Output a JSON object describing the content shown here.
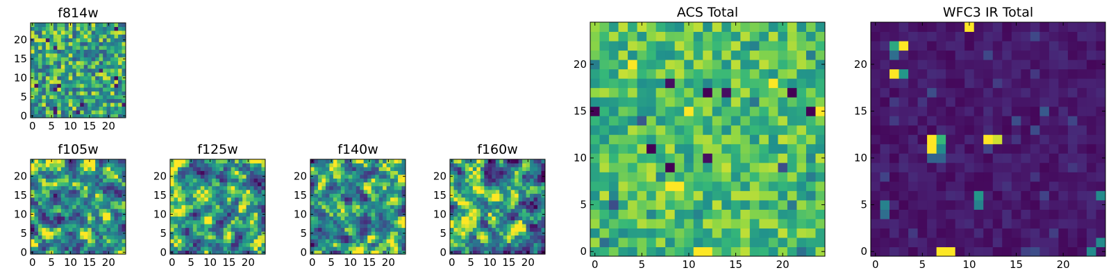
{
  "figure_title": "",
  "chart_data": [
    {
      "type": "heatmap",
      "title": "f814w",
      "grid": 25,
      "colormap": "viridis",
      "pattern": "uniform",
      "seed": 11,
      "xticks": [
        0,
        5,
        10,
        15,
        20
      ],
      "yticks": [
        0,
        5,
        10,
        15,
        20
      ],
      "xlim": [
        -0.5,
        24.5
      ],
      "ylim": [
        -0.5,
        24.5
      ]
    },
    {
      "type": "heatmap",
      "title": "f105w",
      "grid": 25,
      "colormap": "viridis",
      "pattern": "smooth",
      "seed": 23,
      "xticks": [
        0,
        5,
        10,
        15,
        20
      ],
      "yticks": [
        0,
        5,
        10,
        15,
        20
      ],
      "xlim": [
        -0.5,
        24.5
      ],
      "ylim": [
        -0.5,
        24.5
      ]
    },
    {
      "type": "heatmap",
      "title": "f125w",
      "grid": 25,
      "colormap": "viridis",
      "pattern": "smooth",
      "seed": 37,
      "xticks": [
        0,
        5,
        10,
        15,
        20
      ],
      "yticks": [
        0,
        5,
        10,
        15,
        20
      ],
      "xlim": [
        -0.5,
        24.5
      ],
      "ylim": [
        -0.5,
        24.5
      ]
    },
    {
      "type": "heatmap",
      "title": "f140w",
      "grid": 25,
      "colormap": "viridis",
      "pattern": "smooth",
      "seed": 41,
      "xticks": [
        0,
        5,
        10,
        15,
        20
      ],
      "yticks": [
        0,
        5,
        10,
        15,
        20
      ],
      "xlim": [
        -0.5,
        24.5
      ],
      "ylim": [
        -0.5,
        24.5
      ]
    },
    {
      "type": "heatmap",
      "title": "f160w",
      "grid": 25,
      "colormap": "viridis",
      "pattern": "smooth",
      "seed": 53,
      "xticks": [
        0,
        5,
        10,
        15,
        20
      ],
      "yticks": [
        0,
        5,
        10,
        15,
        20
      ],
      "xlim": [
        -0.5,
        24.5
      ],
      "ylim": [
        -0.5,
        24.5
      ]
    },
    {
      "type": "heatmap",
      "title": "ACS Total",
      "grid": 25,
      "colormap": "viridis",
      "pattern": "bright",
      "seed": 67,
      "xticks": [
        0,
        5,
        10,
        15,
        20
      ],
      "yticks": [
        0,
        5,
        10,
        15,
        20
      ],
      "xlim": [
        -0.5,
        24.5
      ],
      "ylim": [
        -0.5,
        24.5
      ],
      "highlights": [
        {
          "x": 0,
          "y": 15,
          "v": 0.0
        },
        {
          "x": 8,
          "y": 18,
          "v": 0.05
        },
        {
          "x": 12,
          "y": 17,
          "v": 0.0
        },
        {
          "x": 14,
          "y": 17,
          "v": 0.05
        },
        {
          "x": 21,
          "y": 17,
          "v": 0.0
        },
        {
          "x": 23,
          "y": 15,
          "v": 0.0
        },
        {
          "x": 6,
          "y": 11,
          "v": 0.0
        },
        {
          "x": 12,
          "y": 10,
          "v": 0.05
        },
        {
          "x": 8,
          "y": 9,
          "v": 0.0
        },
        {
          "x": 4,
          "y": 20,
          "v": 1.0
        },
        {
          "x": 10,
          "y": 15,
          "v": 1.0
        },
        {
          "x": 19,
          "y": 18,
          "v": 1.0
        },
        {
          "x": 24,
          "y": 15,
          "v": 1.0
        },
        {
          "x": 8,
          "y": 7,
          "v": 1.0
        },
        {
          "x": 9,
          "y": 7,
          "v": 1.0
        },
        {
          "x": 11,
          "y": 0,
          "v": 1.0
        },
        {
          "x": 12,
          "y": 0,
          "v": 1.0
        },
        {
          "x": 5,
          "y": 14,
          "v": 0.35
        },
        {
          "x": 20,
          "y": 9,
          "v": 0.3
        },
        {
          "x": 2,
          "y": 5,
          "v": 0.3
        }
      ]
    },
    {
      "type": "heatmap",
      "title": "WFC3 IR Total",
      "grid": 25,
      "colormap": "viridis",
      "pattern": "dark",
      "seed": 79,
      "xticks": [
        0,
        5,
        10,
        15,
        20
      ],
      "yticks": [
        0,
        5,
        10,
        15,
        20
      ],
      "xlim": [
        -0.5,
        24.5
      ],
      "ylim": [
        -0.5,
        24.5
      ],
      "highlights": [
        {
          "x": 10,
          "y": 24,
          "v": 1.0
        },
        {
          "x": 2,
          "y": 22,
          "v": 0.7
        },
        {
          "x": 3,
          "y": 22,
          "v": 1.0
        },
        {
          "x": 2,
          "y": 21,
          "v": 0.45
        },
        {
          "x": 2,
          "y": 19,
          "v": 1.0
        },
        {
          "x": 3,
          "y": 19,
          "v": 0.65
        },
        {
          "x": 6,
          "y": 12,
          "v": 1.0
        },
        {
          "x": 7,
          "y": 12,
          "v": 0.75
        },
        {
          "x": 6,
          "y": 11,
          "v": 1.0
        },
        {
          "x": 7,
          "y": 11,
          "v": 0.6
        },
        {
          "x": 6,
          "y": 10,
          "v": 0.4
        },
        {
          "x": 7,
          "y": 10,
          "v": 0.4
        },
        {
          "x": 12,
          "y": 12,
          "v": 1.0
        },
        {
          "x": 13,
          "y": 12,
          "v": 0.95
        },
        {
          "x": 11,
          "y": 6,
          "v": 0.65
        },
        {
          "x": 11,
          "y": 5,
          "v": 0.55
        },
        {
          "x": 1,
          "y": 5,
          "v": 0.55
        },
        {
          "x": 1,
          "y": 4,
          "v": 0.45
        },
        {
          "x": 7,
          "y": 0,
          "v": 1.0
        },
        {
          "x": 8,
          "y": 0,
          "v": 1.0
        },
        {
          "x": 23,
          "y": 0,
          "v": 0.6
        },
        {
          "x": 24,
          "y": 1,
          "v": 0.6
        },
        {
          "x": 24,
          "y": 6,
          "v": 0.6
        },
        {
          "x": 18,
          "y": 15,
          "v": 0.35
        },
        {
          "x": 15,
          "y": 14,
          "v": 0.3
        }
      ]
    }
  ]
}
